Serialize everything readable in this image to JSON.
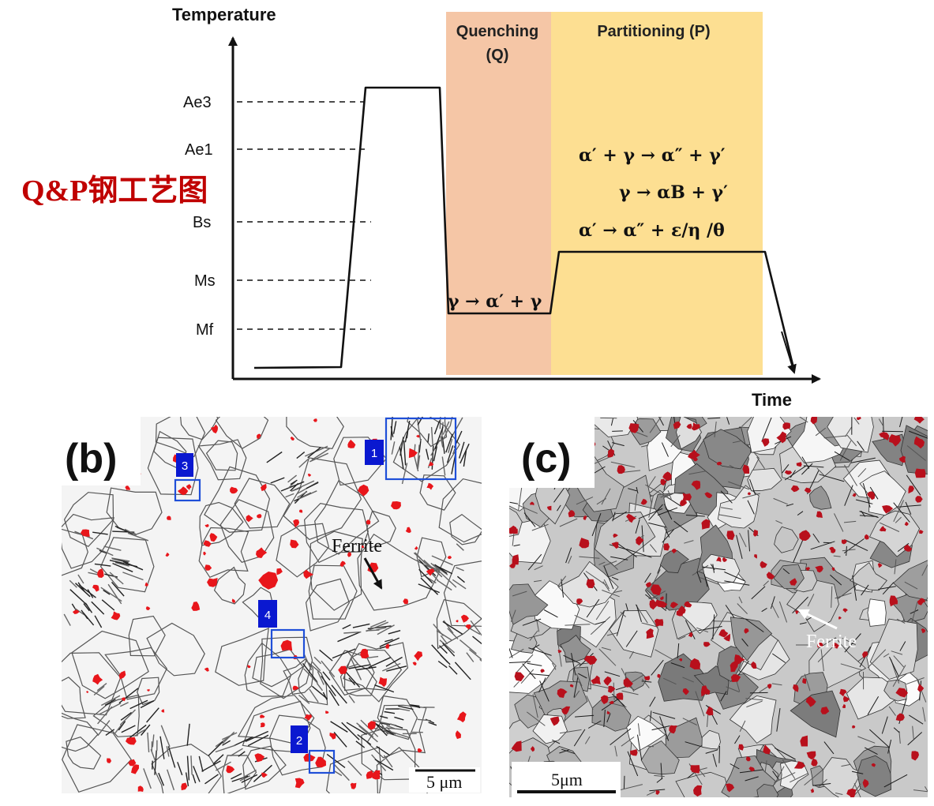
{
  "heat_treatment": {
    "y_axis_title": "Temperature",
    "x_axis_title": "Time",
    "cn_title": "Q&P钢工艺图",
    "levels": [
      "Ae3",
      "Ae1",
      "Bs",
      "Ms",
      "Mf"
    ],
    "stages": {
      "quenching_line1": "Quenching",
      "quenching_line2": "(Q)",
      "partitioning": "Partitioning (P)"
    },
    "reactions": {
      "quench": "γ → α′ + γ",
      "partition_1": "α′ + γ → α″ + γ′",
      "partition_2": "γ → αB + γ′",
      "partition_3": "α′ → α″ + ε/η /θ"
    },
    "colors": {
      "quenching_zone": "#f5c6a6",
      "partitioning_zone": "#fddf92",
      "cn_title": "#c00000"
    }
  },
  "panel_b": {
    "label": "(b)",
    "annotation": "Ferrite",
    "boxes": [
      "1",
      "2",
      "3",
      "4"
    ],
    "scale_bar": "5 μm",
    "colors": {
      "austenite": "#e8161b",
      "box": "#1f4fd8",
      "tag": "#0a18d0"
    }
  },
  "panel_c": {
    "label": "(c)",
    "annotation": "Ferrite",
    "scale_bar": "5μm",
    "colors": {
      "austenite": "#b8101c"
    }
  }
}
